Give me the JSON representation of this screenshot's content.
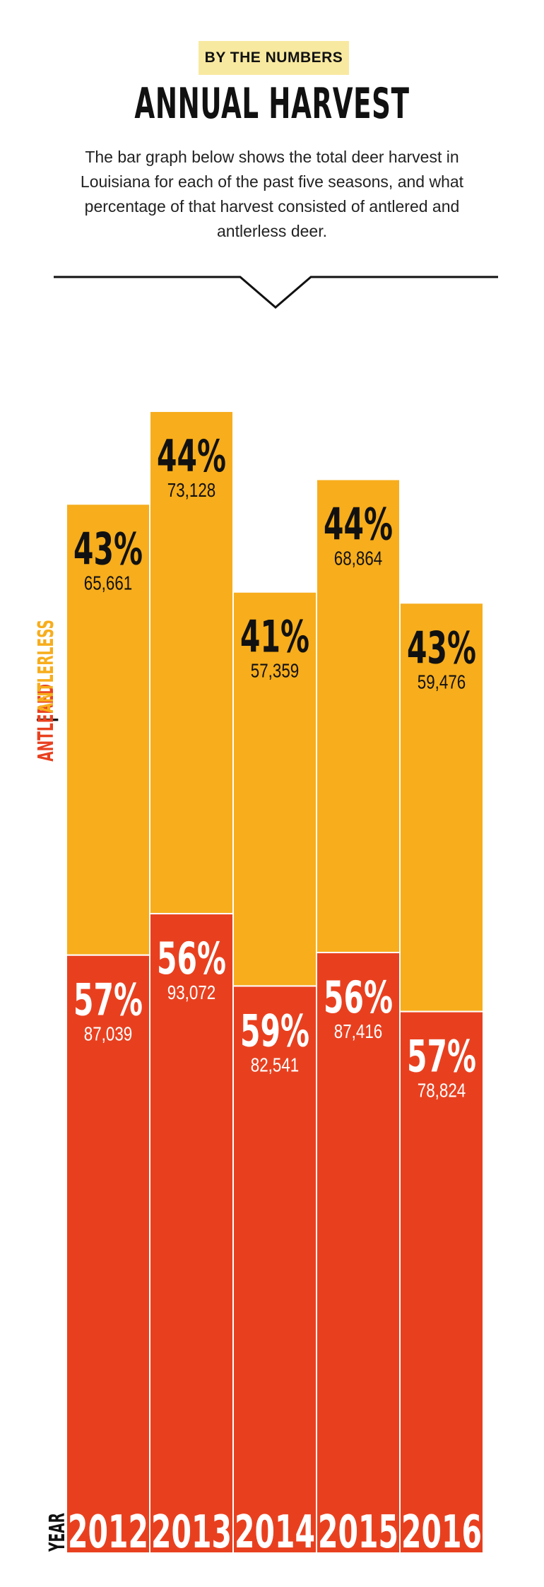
{
  "header": {
    "badge": "BY THE NUMBERS",
    "title": "ANNUAL HARVEST",
    "description": "The bar graph below shows the total deer harvest in Louisiana for each of the past five seasons, and what percentage of that harvest consisted of antlered and antlerless deer."
  },
  "legend": {
    "antlered": "ANTLERED",
    "separator": "|",
    "antlerless": "ANTLERLESS",
    "year": "YEAR"
  },
  "colors": {
    "antlered": "#e8401f",
    "antlerless": "#f7ad1c",
    "badge": "#f8e9a0"
  },
  "chart_data": {
    "type": "bar",
    "stacked": true,
    "categories": [
      "2012",
      "2013",
      "2014",
      "2015",
      "2016"
    ],
    "series": [
      {
        "name": "ANTLERED",
        "values": [
          87039,
          93072,
          82541,
          87416,
          78824
        ],
        "value_labels": [
          "87,039",
          "93,072",
          "82,541",
          "87,416",
          "78,824"
        ],
        "percent_labels": [
          "57%",
          "56%",
          "59%",
          "56%",
          "57%"
        ]
      },
      {
        "name": "ANTLERLESS",
        "values": [
          65661,
          73128,
          57359,
          68864,
          59476
        ],
        "value_labels": [
          "65,661",
          "73,128",
          "57,359",
          "68,864",
          "59,476"
        ],
        "percent_labels": [
          "43%",
          "44%",
          "41%",
          "44%",
          "43%"
        ]
      }
    ],
    "xlabel": "YEAR",
    "ylabel": "",
    "grid": false,
    "legend_position": "left"
  }
}
